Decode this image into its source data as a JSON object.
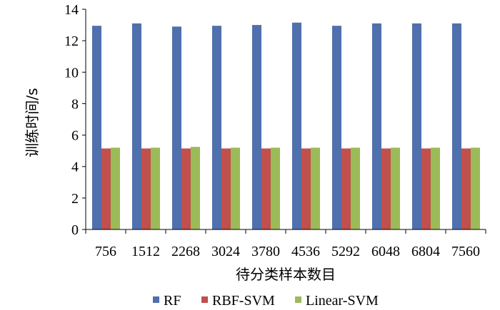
{
  "chart_data": {
    "type": "bar",
    "categories": [
      "756",
      "1512",
      "2268",
      "3024",
      "3780",
      "4536",
      "5292",
      "6048",
      "6804",
      "7560"
    ],
    "series": [
      {
        "name": "RF",
        "color": "#4F6FAD",
        "values": [
          12.95,
          13.1,
          12.9,
          12.95,
          13.0,
          13.15,
          12.95,
          13.1,
          13.1,
          13.1
        ]
      },
      {
        "name": "RBF-SVM",
        "color": "#C0504D",
        "values": [
          5.15,
          5.15,
          5.15,
          5.15,
          5.15,
          5.15,
          5.15,
          5.15,
          5.15,
          5.15
        ]
      },
      {
        "name": "Linear-SVM",
        "color": "#9BBB59",
        "values": [
          5.2,
          5.2,
          5.25,
          5.2,
          5.2,
          5.2,
          5.2,
          5.2,
          5.2,
          5.2
        ]
      }
    ],
    "xlabel": "待分类样本数目",
    "ylabel": "训练时间/s",
    "ylim": [
      0,
      14
    ],
    "yticks": [
      "0",
      "2",
      "4",
      "6",
      "8",
      "10",
      "12",
      "14"
    ],
    "grid": false,
    "legend_position": "bottom"
  }
}
